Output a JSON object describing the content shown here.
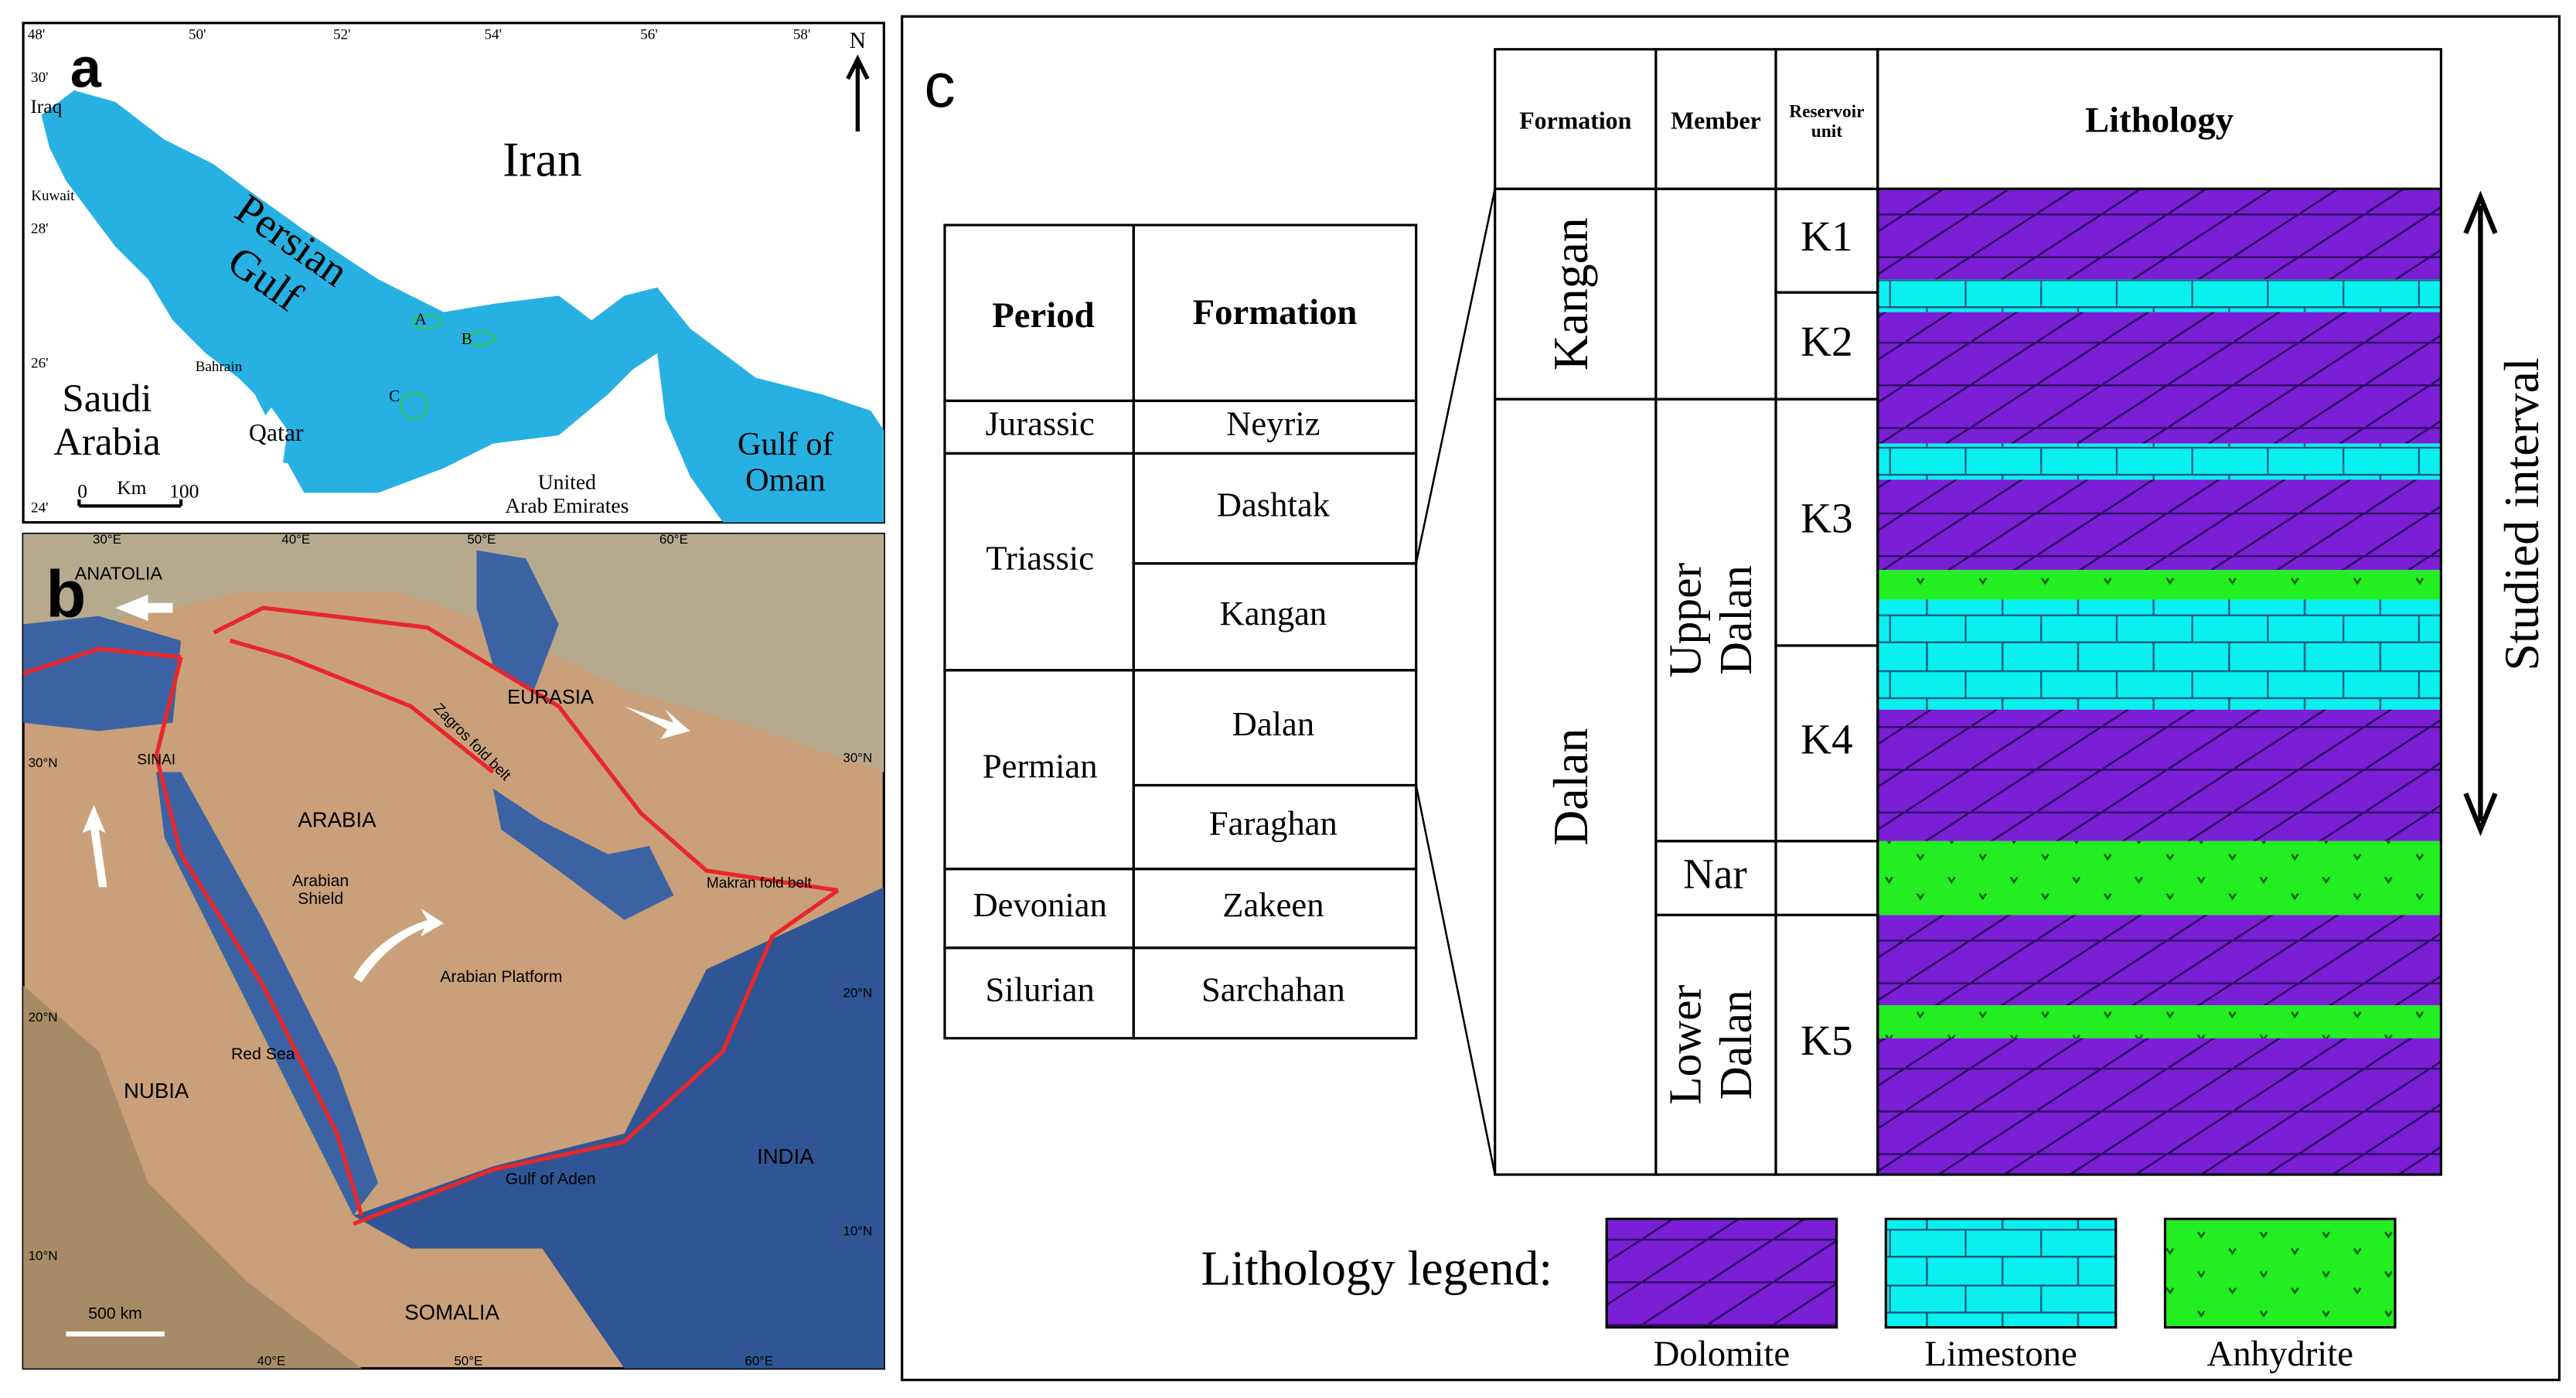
{
  "panel_a": {
    "label": "a",
    "north": "N",
    "lon_labels": [
      "48'",
      "50'",
      "52'",
      "54'",
      "56'",
      "58'"
    ],
    "lat_labels": [
      "30'",
      "28'",
      "26'",
      "24'"
    ],
    "places": [
      "Iraq",
      "Kuwait",
      "Iran",
      "Persian\nGulf",
      "Saudi\nArabia",
      "Qatar",
      "Bahrain",
      "United\nArab Emirates",
      "Gulf of\nOman"
    ],
    "fields": [
      "A",
      "B",
      "C"
    ],
    "scale": [
      "0",
      "Km",
      "100"
    ]
  },
  "panel_b": {
    "label": "b",
    "lon_labels_top": [
      "30°E",
      "40°E",
      "50°E",
      "60°E"
    ],
    "lon_labels_bottom": [
      "40°E",
      "50°E",
      "60°E"
    ],
    "lat_labels_left": [
      "30°N",
      "20°N",
      "10°N"
    ],
    "lat_labels_right": [
      "30°N",
      "20°N",
      "10°N"
    ],
    "places": [
      "ANATOLIA",
      "EURASIA",
      "ARABIA",
      "Arabian\nShield",
      "Arabian Platform",
      "NUBIA",
      "INDIA",
      "SOMALIA",
      "SINAI",
      "Red Sea",
      "Gulf of Aden",
      "Zagros fold belt",
      "Makran fold belt"
    ],
    "scale": "500 km"
  },
  "panel_c": {
    "label": "c",
    "table": {
      "header": [
        "Period",
        "Formation"
      ],
      "periods": [
        {
          "name": "Jurassic",
          "formations": [
            "Neyriz"
          ]
        },
        {
          "name": "Triassic",
          "formations": [
            "Dashtak",
            "Kangan"
          ]
        },
        {
          "name": "Permian",
          "formations": [
            "Dalan",
            "Faraghan"
          ]
        },
        {
          "name": "Devonian",
          "formations": [
            "Zakeen"
          ]
        },
        {
          "name": "Silurian",
          "formations": [
            "Sarchahan"
          ]
        }
      ]
    },
    "column": {
      "headers": [
        "Formation",
        "Member",
        "Reservoir\nunit",
        "Lithology"
      ],
      "formations": [
        "Kangan",
        "Dalan"
      ],
      "members": [
        "Upper\nDalan",
        "Nar",
        "Lower\nDalan"
      ],
      "units": [
        "K1",
        "K2",
        "K3",
        "K4",
        "K5"
      ],
      "range_label": "Studied interval"
    },
    "legend": {
      "title": "Lithology legend:",
      "items": [
        "Dolomite",
        "Limestone",
        "Anhydrite"
      ]
    }
  }
}
